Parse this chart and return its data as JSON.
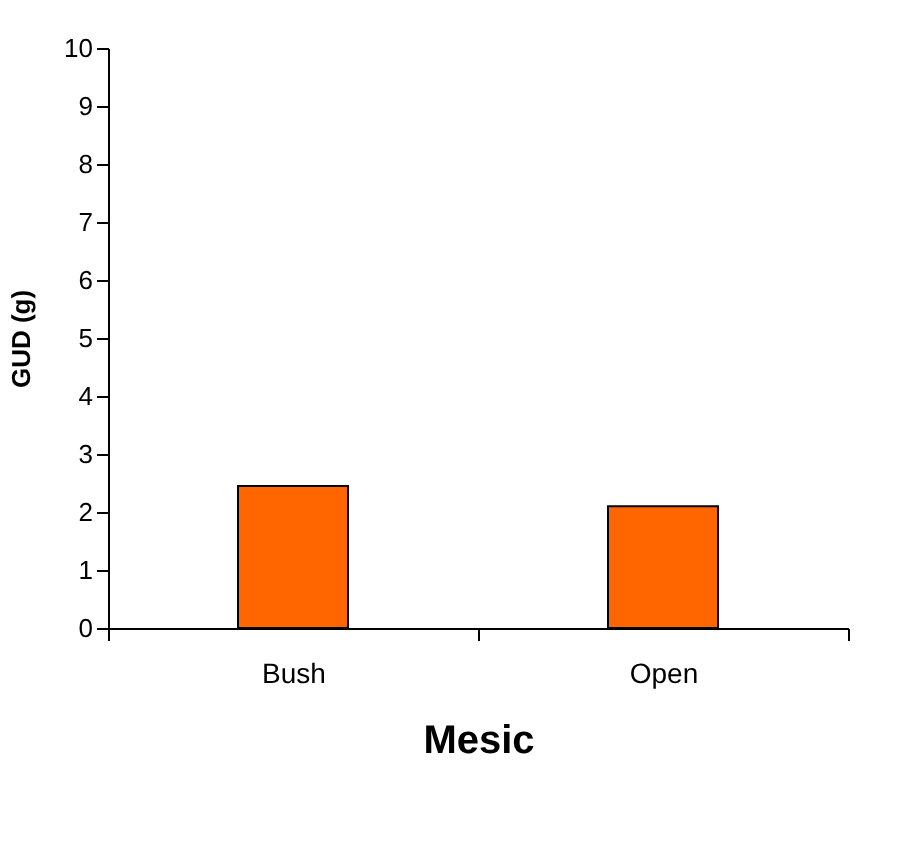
{
  "chart_data": {
    "type": "bar",
    "xlabel": "Mesic",
    "ylabel": "GUD (g)",
    "categories": [
      "Bush",
      "Open"
    ],
    "series": [
      {
        "color": "#ff6600",
        "values": [
          2.45,
          2.1
        ]
      }
    ],
    "ylim": [
      0,
      10
    ],
    "yticks": [
      0,
      1,
      2,
      3,
      4,
      5,
      6,
      7,
      8,
      9,
      10
    ],
    "grid": false,
    "legend": false
  }
}
